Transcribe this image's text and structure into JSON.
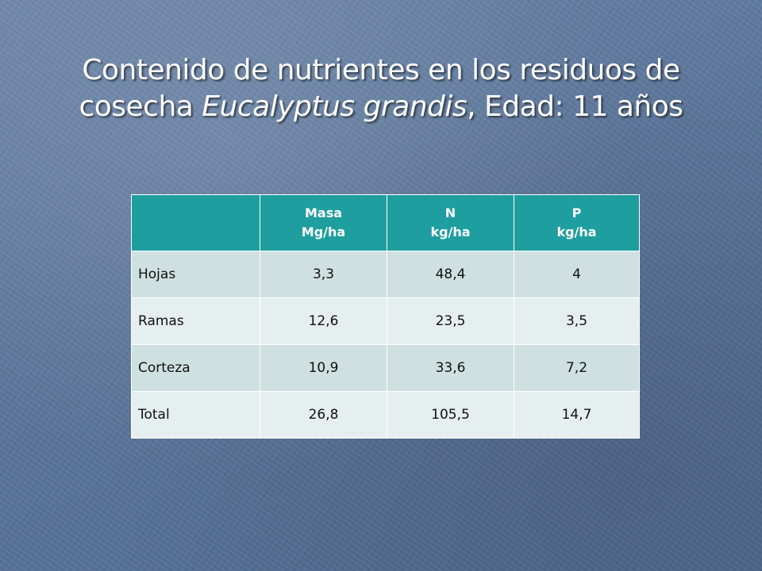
{
  "title": {
    "line1": "Contenido de nutrientes en los residuos de",
    "line2_prefix": "cosecha ",
    "line2_species": "Eucalyptus grandis",
    "line2_suffix": ", Edad: 11 años"
  },
  "table": {
    "headers": [
      {
        "line1": "",
        "line2": ""
      },
      {
        "line1": "Masa",
        "line2": "Mg/ha"
      },
      {
        "line1": "N",
        "line2": "kg/ha"
      },
      {
        "line1": "P",
        "line2": "kg/ha"
      }
    ],
    "rows": [
      {
        "label": "Hojas",
        "masa": "3,3",
        "n": "48,4",
        "p": "4"
      },
      {
        "label": "Ramas",
        "masa": "12,6",
        "n": "23,5",
        "p": "3,5"
      },
      {
        "label": "Corteza",
        "masa": "10,9",
        "n": "33,6",
        "p": "7,2"
      },
      {
        "label": "Total",
        "masa": "26,8",
        "n": "105,5",
        "p": "14,7"
      }
    ]
  },
  "colors": {
    "background": "#5a7499",
    "header_fill": "#1e9e9e",
    "row_odd_fill": "#cfe0e0",
    "row_even_fill": "#e6efef",
    "title_text": "#ffffff"
  }
}
